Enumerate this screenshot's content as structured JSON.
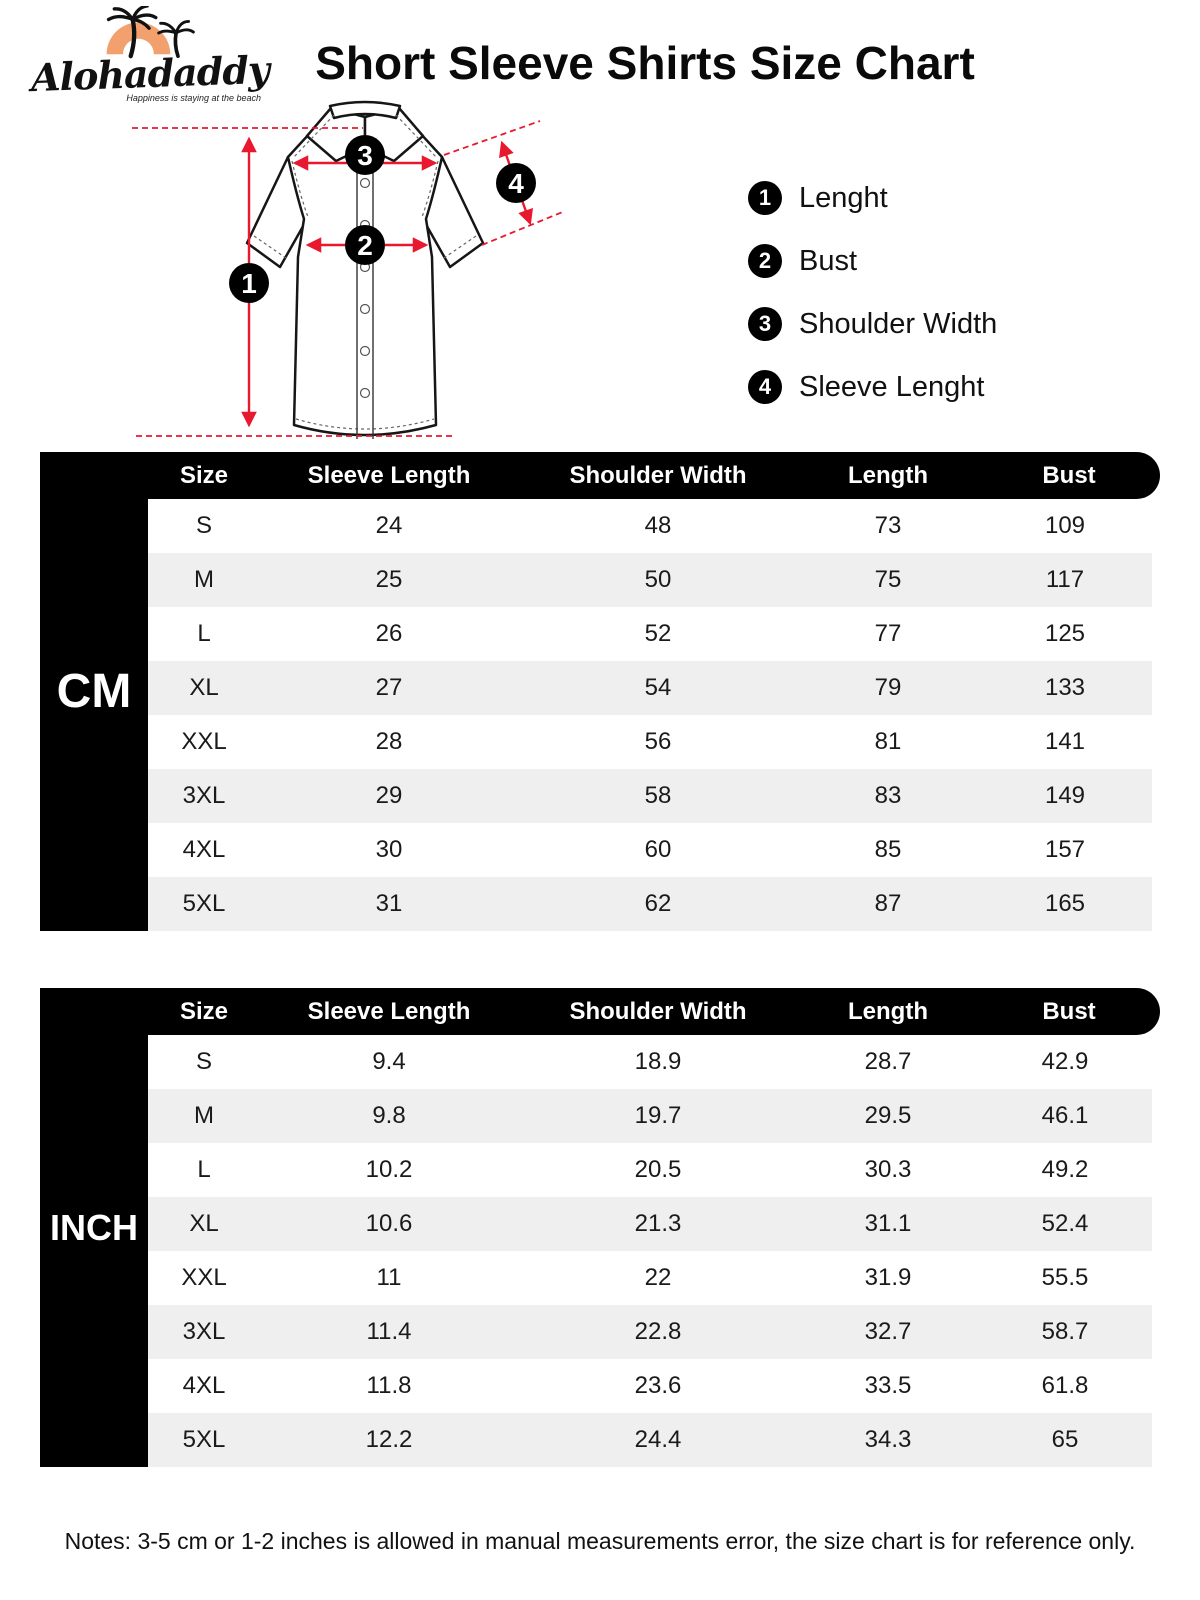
{
  "brand": {
    "name": "Alohadaddy",
    "tagline": "Happiness is staying at the beach"
  },
  "title": "Short Sleeve Shirts Size Chart",
  "legend": [
    {
      "num": "1",
      "label": "Lenght"
    },
    {
      "num": "2",
      "label": "Bust"
    },
    {
      "num": "3",
      "label": "Shoulder Width"
    },
    {
      "num": "4",
      "label": "Sleeve Lenght"
    }
  ],
  "tables": [
    {
      "unit": "CM",
      "headers": [
        "Size",
        "Sleeve Length",
        "Shoulder Width",
        "Length",
        "Bust"
      ],
      "rows": [
        [
          "S",
          "24",
          "48",
          "73",
          "109"
        ],
        [
          "M",
          "25",
          "50",
          "75",
          "117"
        ],
        [
          "L",
          "26",
          "52",
          "77",
          "125"
        ],
        [
          "XL",
          "27",
          "54",
          "79",
          "133"
        ],
        [
          "XXL",
          "28",
          "56",
          "81",
          "141"
        ],
        [
          "3XL",
          "29",
          "58",
          "83",
          "149"
        ],
        [
          "4XL",
          "30",
          "60",
          "85",
          "157"
        ],
        [
          "5XL",
          "31",
          "62",
          "87",
          "165"
        ]
      ]
    },
    {
      "unit": "INCH",
      "headers": [
        "Size",
        "Sleeve Length",
        "Shoulder Width",
        "Length",
        "Bust"
      ],
      "rows": [
        [
          "S",
          "9.4",
          "18.9",
          "28.7",
          "42.9"
        ],
        [
          "M",
          "9.8",
          "19.7",
          "29.5",
          "46.1"
        ],
        [
          "L",
          "10.2",
          "20.5",
          "30.3",
          "49.2"
        ],
        [
          "XL",
          "10.6",
          "21.3",
          "31.1",
          "52.4"
        ],
        [
          "XXL",
          "11",
          "22",
          "31.9",
          "55.5"
        ],
        [
          "3XL",
          "11.4",
          "22.8",
          "32.7",
          "58.7"
        ],
        [
          "4XL",
          "11.8",
          "23.6",
          "33.5",
          "61.8"
        ],
        [
          "5XL",
          "12.2",
          "24.4",
          "34.3",
          "65"
        ]
      ]
    }
  ],
  "notes": "Notes: 3-5 cm or 1-2 inches is allowed in manual measurements error, the size chart is for reference only.",
  "colors": {
    "accent_red": "#e8192e",
    "table_header_bg": "#000000",
    "row_alt_bg": "#efefef",
    "sun_orange": "#f2a16e"
  }
}
